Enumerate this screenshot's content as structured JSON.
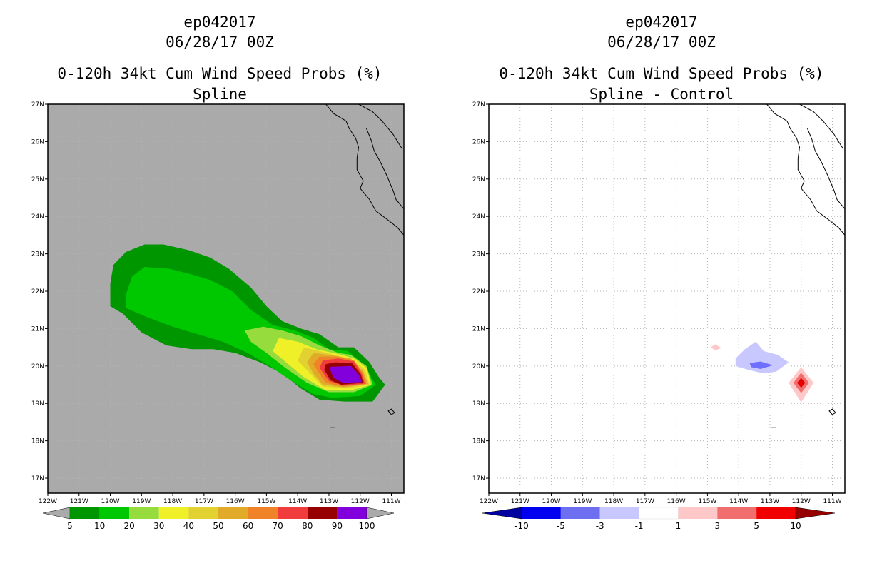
{
  "chart_data": [
    {
      "type": "heatmap",
      "panel": "left",
      "title_lines": [
        "ep042017",
        "06/28/17 00Z",
        "0-120h 34kt Cum Wind Speed Probs (%)",
        "Spline"
      ],
      "xlim": [
        -122,
        -110.6
      ],
      "ylim": [
        16.6,
        27
      ],
      "x_ticks": [
        -122,
        -121,
        -120,
        -119,
        -118,
        -117,
        -116,
        -115,
        -114,
        -113,
        -112,
        -111
      ],
      "x_tick_labels": [
        "122W",
        "121W",
        "120W",
        "119W",
        "118W",
        "117W",
        "116W",
        "115W",
        "114W",
        "113W",
        "112W",
        "111W"
      ],
      "y_ticks": [
        17,
        18,
        19,
        20,
        21,
        22,
        23,
        24,
        25,
        26,
        27
      ],
      "y_tick_labels": [
        "17N",
        "18N",
        "19N",
        "20N",
        "21N",
        "22N",
        "23N",
        "24N",
        "25N",
        "26N",
        "27N"
      ],
      "background": "#aaaaaa",
      "contours": [
        {
          "level": 5,
          "color": "#009600",
          "polygon": [
            [
              -119.9,
              22.7
            ],
            [
              -119.5,
              23.05
            ],
            [
              -118.9,
              23.25
            ],
            [
              -118.3,
              23.25
            ],
            [
              -117.5,
              23.1
            ],
            [
              -116.8,
              22.9
            ],
            [
              -116.2,
              22.6
            ],
            [
              -115.5,
              22.1
            ],
            [
              -115,
              21.6
            ],
            [
              -114.5,
              21.2
            ],
            [
              -113.9,
              21
            ],
            [
              -113.3,
              20.85
            ],
            [
              -112.7,
              20.5
            ],
            [
              -112.2,
              20.5
            ],
            [
              -111.7,
              20.1
            ],
            [
              -111.4,
              19.7
            ],
            [
              -111.2,
              19.5
            ],
            [
              -111.6,
              19.05
            ],
            [
              -112.5,
              19.05
            ],
            [
              -113.3,
              19.1
            ],
            [
              -113.9,
              19.4
            ],
            [
              -114.5,
              19.8
            ],
            [
              -115.2,
              20.1
            ],
            [
              -116,
              20.35
            ],
            [
              -116.7,
              20.45
            ],
            [
              -117.4,
              20.45
            ],
            [
              -118.2,
              20.55
            ],
            [
              -119,
              20.9
            ],
            [
              -119.6,
              21.4
            ],
            [
              -120,
              21.6
            ],
            [
              -120,
              22.2
            ]
          ]
        },
        {
          "level": 10,
          "color": "#00c800",
          "polygon": [
            [
              -119.5,
              21.9
            ],
            [
              -119.3,
              22.4
            ],
            [
              -118.9,
              22.65
            ],
            [
              -118.1,
              22.6
            ],
            [
              -117.4,
              22.45
            ],
            [
              -116.8,
              22.3
            ],
            [
              -116.1,
              22
            ],
            [
              -115.5,
              21.5
            ],
            [
              -114.8,
              21.1
            ],
            [
              -114.1,
              20.95
            ],
            [
              -113.5,
              20.75
            ],
            [
              -113,
              20.45
            ],
            [
              -112.4,
              20.4
            ],
            [
              -111.9,
              20.05
            ],
            [
              -111.5,
              19.5
            ],
            [
              -112,
              19.2
            ],
            [
              -112.9,
              19.15
            ],
            [
              -113.5,
              19.25
            ],
            [
              -114.2,
              19.6
            ],
            [
              -114.9,
              20
            ],
            [
              -115.6,
              20.35
            ],
            [
              -116.4,
              20.65
            ],
            [
              -117.2,
              20.85
            ],
            [
              -118,
              21.05
            ],
            [
              -118.8,
              21.3
            ],
            [
              -119.5,
              21.55
            ]
          ]
        },
        {
          "level": 20,
          "color": "#96dc3c",
          "polygon": [
            [
              -115.7,
              20.95
            ],
            [
              -115.1,
              21.05
            ],
            [
              -114.5,
              20.95
            ],
            [
              -113.9,
              20.8
            ],
            [
              -113.3,
              20.55
            ],
            [
              -112.7,
              20.35
            ],
            [
              -112.3,
              20.3
            ],
            [
              -111.8,
              20
            ],
            [
              -111.6,
              19.5
            ],
            [
              -112.2,
              19.3
            ],
            [
              -113,
              19.3
            ],
            [
              -113.7,
              19.55
            ],
            [
              -114.4,
              19.95
            ],
            [
              -115,
              20.35
            ],
            [
              -115.5,
              20.65
            ]
          ]
        },
        {
          "level": 30,
          "color": "#f0f028",
          "polygon": [
            [
              -114.6,
              20.75
            ],
            [
              -114,
              20.65
            ],
            [
              -113.4,
              20.45
            ],
            [
              -112.6,
              20.3
            ],
            [
              -112.2,
              20.2
            ],
            [
              -111.8,
              19.95
            ],
            [
              -111.65,
              19.5
            ],
            [
              -112.3,
              19.35
            ],
            [
              -113.1,
              19.35
            ],
            [
              -113.8,
              19.7
            ],
            [
              -114.3,
              20.05
            ],
            [
              -114.8,
              20.4
            ]
          ]
        },
        {
          "level": 40,
          "color": "#e1d232",
          "polygon": [
            [
              -113.8,
              20.5
            ],
            [
              -113.3,
              20.4
            ],
            [
              -112.6,
              20.25
            ],
            [
              -112.2,
              20.15
            ],
            [
              -111.85,
              19.9
            ],
            [
              -111.7,
              19.5
            ],
            [
              -112.4,
              19.4
            ],
            [
              -113.2,
              19.45
            ],
            [
              -113.6,
              19.8
            ],
            [
              -114,
              20.15
            ]
          ]
        },
        {
          "level": 50,
          "color": "#e1aa28",
          "polygon": [
            [
              -113.5,
              20.35
            ],
            [
              -113,
              20.3
            ],
            [
              -112.3,
              20.2
            ],
            [
              -111.9,
              19.85
            ],
            [
              -111.75,
              19.52
            ],
            [
              -112.5,
              19.43
            ],
            [
              -113.2,
              19.5
            ],
            [
              -113.5,
              19.8
            ],
            [
              -113.7,
              20.1
            ]
          ]
        },
        {
          "level": 60,
          "color": "#f08228",
          "polygon": [
            [
              -113.3,
              20.25
            ],
            [
              -112.8,
              20.25
            ],
            [
              -112.2,
              20.15
            ],
            [
              -111.92,
              19.82
            ],
            [
              -111.8,
              19.52
            ],
            [
              -112.55,
              19.45
            ],
            [
              -113.1,
              19.55
            ],
            [
              -113.35,
              19.85
            ],
            [
              -113.5,
              20.05
            ]
          ]
        },
        {
          "level": 70,
          "color": "#f03c3c",
          "polygon": [
            [
              -113.2,
              20.15
            ],
            [
              -112.7,
              20.2
            ],
            [
              -112.2,
              20.12
            ],
            [
              -111.95,
              19.8
            ],
            [
              -111.85,
              19.53
            ],
            [
              -112.55,
              19.48
            ],
            [
              -113,
              19.6
            ],
            [
              -113.3,
              19.95
            ]
          ]
        },
        {
          "level": 80,
          "color": "#960000",
          "polygon": [
            [
              -113.1,
              20.05
            ],
            [
              -112.8,
              20.1
            ],
            [
              -112.25,
              20.07
            ],
            [
              -111.98,
              19.78
            ],
            [
              -111.9,
              19.55
            ],
            [
              -112.6,
              19.5
            ],
            [
              -112.95,
              19.62
            ],
            [
              -113.15,
              19.9
            ]
          ]
        },
        {
          "level": 90,
          "color": "#8200dc",
          "polygon": [
            [
              -112.95,
              19.98
            ],
            [
              -112.3,
              20
            ],
            [
              -112.02,
              19.75
            ],
            [
              -111.95,
              19.57
            ],
            [
              -112.55,
              19.55
            ],
            [
              -112.85,
              19.68
            ],
            [
              -112.95,
              19.88
            ]
          ]
        }
      ],
      "legend": {
        "labels": [
          "5",
          "10",
          "20",
          "30",
          "40",
          "50",
          "60",
          "70",
          "80",
          "90",
          "100"
        ],
        "colors": [
          "#aaaaaa",
          "#009600",
          "#00c800",
          "#96dc3c",
          "#f0f028",
          "#e1d232",
          "#e1aa28",
          "#f08228",
          "#f03c3c",
          "#960000",
          "#8200dc",
          "#aaaaaa"
        ]
      }
    },
    {
      "type": "heatmap",
      "panel": "right",
      "title_lines": [
        "ep042017",
        "06/28/17 00Z",
        "0-120h 34kt Cum Wind Speed Probs (%)",
        "Spline - Control"
      ],
      "xlim": [
        -122,
        -110.6
      ],
      "ylim": [
        16.6,
        27
      ],
      "x_ticks": [
        -122,
        -121,
        -120,
        -119,
        -118,
        -117,
        -116,
        -115,
        -114,
        -113,
        -112,
        -111
      ],
      "x_tick_labels": [
        "122W",
        "121W",
        "120W",
        "119W",
        "118W",
        "117W",
        "116W",
        "115W",
        "114W",
        "113W",
        "112W",
        "111W"
      ],
      "y_ticks": [
        17,
        18,
        19,
        20,
        21,
        22,
        23,
        24,
        25,
        26,
        27
      ],
      "y_tick_labels": [
        "17N",
        "18N",
        "19N",
        "20N",
        "21N",
        "22N",
        "23N",
        "24N",
        "25N",
        "26N",
        "27N"
      ],
      "background": "#ffffff",
      "grid": true,
      "contours": [
        {
          "level": -1,
          "color": "#c8c8ff",
          "polygon": [
            [
              -114.1,
              20.2
            ],
            [
              -113.8,
              20.45
            ],
            [
              -113.45,
              20.65
            ],
            [
              -113.2,
              20.4
            ],
            [
              -112.75,
              20.3
            ],
            [
              -112.4,
              20.1
            ],
            [
              -112.8,
              19.85
            ],
            [
              -113.2,
              19.8
            ],
            [
              -113.7,
              19.9
            ],
            [
              -114.1,
              20
            ]
          ]
        },
        {
          "level": -3,
          "color": "#6e6eff",
          "polygon": [
            [
              -113.65,
              20.08
            ],
            [
              -113.3,
              20.12
            ],
            [
              -112.9,
              20.02
            ],
            [
              -113.3,
              19.92
            ],
            [
              -113.6,
              19.97
            ]
          ]
        },
        {
          "level": 1,
          "color": "#ffc8c8",
          "polygon": [
            [
              -114.9,
              20.5
            ],
            [
              -114.75,
              20.58
            ],
            [
              -114.55,
              20.48
            ],
            [
              -114.75,
              20.42
            ]
          ]
        },
        {
          "level": 1,
          "color": "#ffc8c8",
          "polygon": [
            [
              -112,
              19.97
            ],
            [
              -111.6,
              19.55
            ],
            [
              -112,
              19.03
            ],
            [
              -112.4,
              19.55
            ]
          ]
        },
        {
          "level": 3,
          "color": "#f06e6e",
          "polygon": [
            [
              -112,
              19.82
            ],
            [
              -111.75,
              19.55
            ],
            [
              -112,
              19.28
            ],
            [
              -112.25,
              19.55
            ]
          ]
        },
        {
          "level": 5,
          "color": "#e60000",
          "polygon": [
            [
              -112,
              19.68
            ],
            [
              -111.87,
              19.55
            ],
            [
              -112,
              19.42
            ],
            [
              -112.13,
              19.55
            ]
          ]
        }
      ],
      "legend": {
        "labels": [
          "-10",
          "-5",
          "-3",
          "-1",
          "1",
          "3",
          "5",
          "10"
        ],
        "colors": [
          "#0000a0",
          "#0000f0",
          "#6e6ef0",
          "#c8c8ff",
          "#ffffff",
          "#ffc8c8",
          "#f06e6e",
          "#f00000",
          "#960000"
        ]
      }
    }
  ],
  "coast": {
    "mainland": [
      [
        -112.05,
        27
      ],
      [
        -111.6,
        26.8
      ],
      [
        -111.3,
        26.55
      ],
      [
        -111.1,
        26.35
      ],
      [
        -110.95,
        26.2
      ],
      [
        -110.8,
        26
      ],
      [
        -110.65,
        25.8
      ]
    ],
    "baja": [
      [
        -113.1,
        27
      ],
      [
        -112.85,
        26.75
      ],
      [
        -112.45,
        26.55
      ],
      [
        -112.35,
        26.35
      ],
      [
        -112.15,
        26.1
      ],
      [
        -112.05,
        25.85
      ],
      [
        -112.1,
        25.55
      ],
      [
        -112.1,
        25.25
      ],
      [
        -111.9,
        24.95
      ],
      [
        -112.0,
        24.75
      ],
      [
        -111.7,
        24.45
      ],
      [
        -111.5,
        24.15
      ],
      [
        -111.1,
        23.9
      ],
      [
        -110.8,
        23.7
      ],
      [
        -110.6,
        23.5
      ]
    ],
    "gulf": [
      [
        -110.6,
        24.2
      ],
      [
        -110.85,
        24.45
      ],
      [
        -110.95,
        24.7
      ],
      [
        -111.15,
        25.1
      ],
      [
        -111.35,
        25.45
      ],
      [
        -111.55,
        25.75
      ],
      [
        -111.65,
        26.05
      ],
      [
        -111.8,
        26.35
      ]
    ],
    "islands": [
      [
        [
          -111.0,
          18.85
        ],
        [
          -110.9,
          18.75
        ],
        [
          -111.0,
          18.7
        ],
        [
          -111.1,
          18.8
        ]
      ],
      [
        [
          -112.95,
          18.35
        ],
        [
          -112.8,
          18.35
        ]
      ]
    ]
  }
}
